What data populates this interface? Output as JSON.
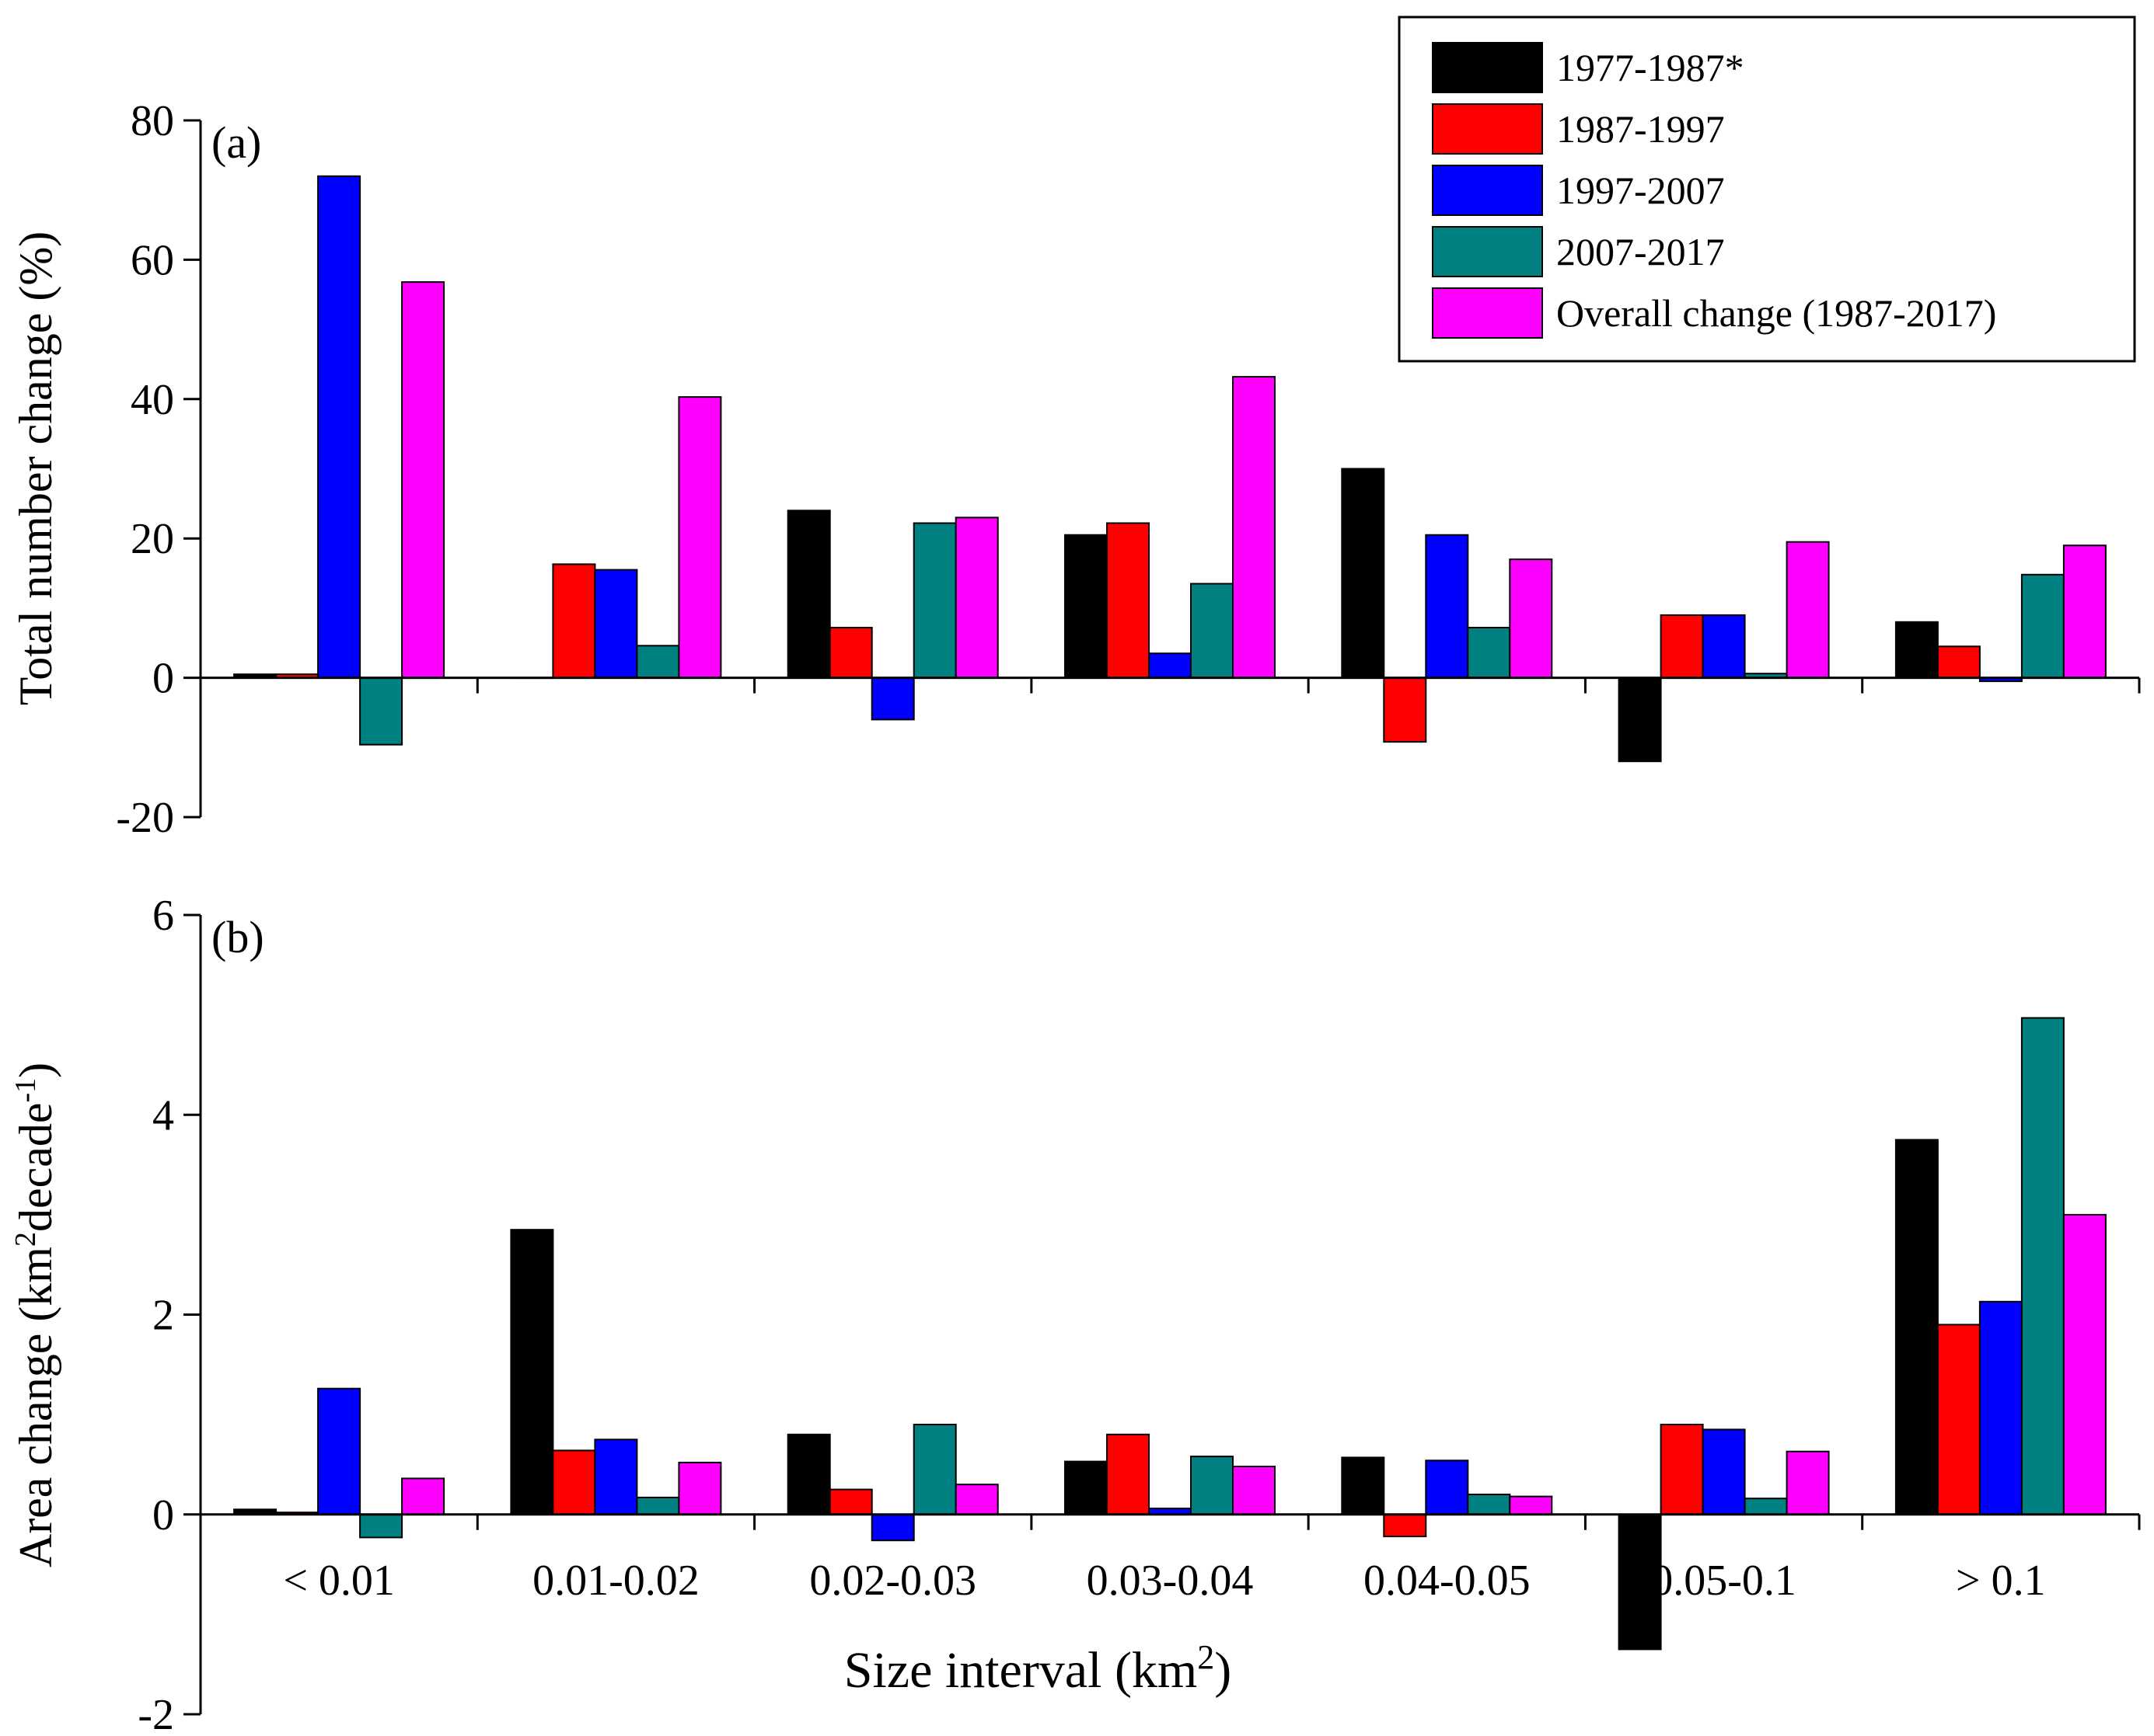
{
  "chart_data": [
    {
      "type": "bar",
      "panel_label": "(a)",
      "title": "",
      "ylabel": "Total number change (%)",
      "xlabel": "",
      "ylim": [
        -20,
        80
      ],
      "yticks": [
        -20,
        0,
        20,
        40,
        60,
        80
      ],
      "categories": [
        "< 0.01",
        "0.01-0.02",
        "0.02-0.03",
        "0.03-0.04",
        "0.04-0.05",
        "0.05-0.1",
        "> 0.1"
      ],
      "series": [
        {
          "name": "1977-1987*",
          "color": "#000000",
          "values": [
            0.5,
            0,
            24,
            20.5,
            30,
            -12,
            8
          ]
        },
        {
          "name": "1987-1997",
          "color": "#ff0000",
          "values": [
            0.5,
            16.3,
            7.2,
            22.2,
            -9.2,
            9,
            4.5
          ]
        },
        {
          "name": "1997-2007",
          "color": "#0000ff",
          "values": [
            72,
            15.5,
            -6,
            3.5,
            20.5,
            9,
            -0.5
          ]
        },
        {
          "name": "2007-2017",
          "color": "#008080",
          "values": [
            -9.6,
            4.6,
            22.2,
            13.5,
            7.2,
            0.6,
            14.8
          ]
        },
        {
          "name": "Overall change (1987-2017)",
          "color": "#ff00ff",
          "values": [
            56.8,
            40.3,
            23,
            43.2,
            17,
            19.5,
            19
          ]
        }
      ],
      "legend": {
        "placement": "top-right"
      }
    },
    {
      "type": "bar",
      "panel_label": "(b)",
      "title": "",
      "ylabel": "Area change (km",
      "ylabel_sup1": "2",
      "ylabel_mid": "decade",
      "ylabel_sup2": "-1",
      "ylabel_end": ")",
      "xlabel": "Size interval (km",
      "xlabel_sup": "2",
      "xlabel_end": ")",
      "ylim": [
        -2,
        6
      ],
      "yticks": [
        -2,
        0,
        2,
        4,
        6
      ],
      "categories": [
        "< 0.01",
        "0.01-0.02",
        "0.02-0.03",
        "0.03-0.04",
        "0.04-0.05",
        "0.05-0.1",
        "> 0.1"
      ],
      "series": [
        {
          "name": "1977-1987*",
          "color": "#000000",
          "values": [
            0.05,
            2.85,
            0.8,
            0.53,
            0.57,
            -1.35,
            3.75
          ]
        },
        {
          "name": "1987-1997",
          "color": "#ff0000",
          "values": [
            0.02,
            0.64,
            0.25,
            0.8,
            -0.22,
            0.9,
            1.9
          ]
        },
        {
          "name": "1997-2007",
          "color": "#0000ff",
          "values": [
            1.26,
            0.75,
            -0.26,
            0.06,
            0.54,
            0.85,
            2.13
          ]
        },
        {
          "name": "2007-2017",
          "color": "#008080",
          "values": [
            -0.23,
            0.17,
            0.9,
            0.58,
            0.2,
            0.16,
            4.97
          ]
        },
        {
          "name": "Overall change (1987-2017)",
          "color": "#ff00ff",
          "values": [
            0.36,
            0.52,
            0.3,
            0.48,
            0.18,
            0.63,
            3.0
          ]
        }
      ]
    }
  ]
}
